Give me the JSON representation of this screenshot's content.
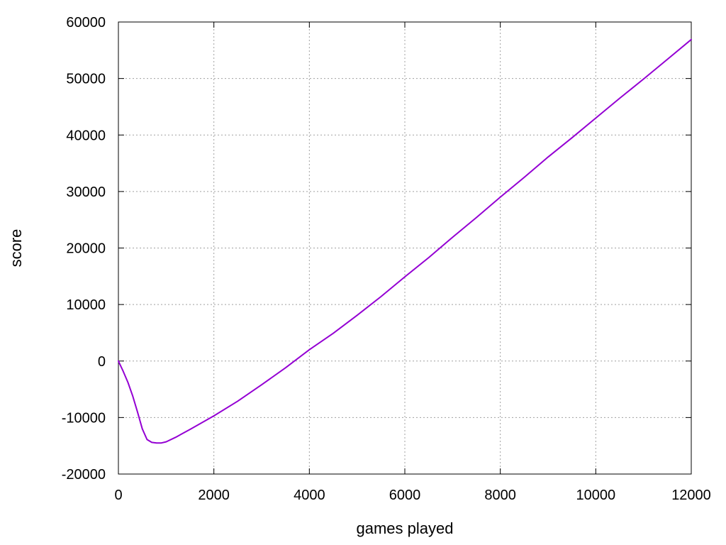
{
  "chart_data": {
    "type": "line",
    "title": "",
    "xlabel": "games played",
    "ylabel": "score",
    "xlim": [
      0,
      12000
    ],
    "ylim": [
      -20000,
      60000
    ],
    "grid": true,
    "xticks": [
      0,
      2000,
      4000,
      6000,
      8000,
      10000,
      12000
    ],
    "yticks": [
      -20000,
      -10000,
      0,
      10000,
      20000,
      30000,
      40000,
      50000,
      60000
    ],
    "xtick_labels": [
      "0",
      "2000",
      "4000",
      "6000",
      "8000",
      "10000",
      "12000"
    ],
    "ytick_labels": [
      "-20000",
      "-10000",
      "0",
      "10000",
      "20000",
      "30000",
      "40000",
      "50000",
      "60000"
    ],
    "series": [
      {
        "name": "score",
        "color": "#9400d3",
        "x": [
          0,
          100,
          200,
          300,
          400,
          500,
          600,
          700,
          800,
          900,
          1000,
          1200,
          1500,
          2000,
          2500,
          3000,
          3500,
          4000,
          4500,
          5000,
          5500,
          6000,
          6500,
          7000,
          7500,
          8000,
          8500,
          9000,
          9500,
          10000,
          10500,
          11000,
          11500,
          12000
        ],
        "y": [
          0,
          -1800,
          -3800,
          -6200,
          -9000,
          -12000,
          -13900,
          -14400,
          -14500,
          -14500,
          -14300,
          -13500,
          -12100,
          -9700,
          -7100,
          -4200,
          -1200,
          2000,
          4900,
          8100,
          11400,
          14900,
          18300,
          21900,
          25400,
          29000,
          32500,
          36100,
          39500,
          43000,
          46500,
          49900,
          53400,
          56900
        ]
      }
    ]
  }
}
